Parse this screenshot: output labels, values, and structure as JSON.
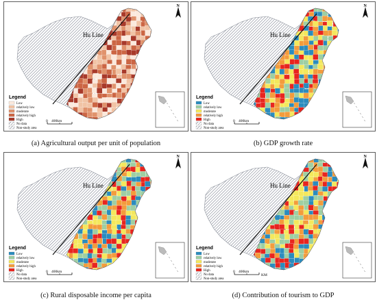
{
  "panels": [
    {
      "id": "a",
      "caption": "(a) Agricultural output per unit of population",
      "line_label": "Hu Line",
      "legend_title": "Legend",
      "classes": [
        "Low",
        "relatively low",
        "moderate",
        "relatively high",
        "High"
      ],
      "palette": [
        "#fbe9dd",
        "#f1c3a5",
        "#e0926c",
        "#cc6644",
        "#a8392a"
      ],
      "extra": [
        "No data",
        "Non-study area"
      ],
      "scale": "400km",
      "scale_zero": "0",
      "north": "N"
    },
    {
      "id": "b",
      "caption": "(b) GDP growth rate",
      "line_label": "Hu Line",
      "legend_title": "Legend",
      "classes": [
        "Low",
        "relatively low",
        "moderate",
        "relatively high",
        "High"
      ],
      "palette": [
        "#2b8cbe",
        "#9ecfa3",
        "#f4e85c",
        "#f39c3c",
        "#e8251f"
      ],
      "extra": [
        "No data",
        "Non-study area"
      ],
      "scale": "400km",
      "scale_zero": "0",
      "north": "N"
    },
    {
      "id": "c",
      "caption": "(c) Rural disposable income per capita",
      "line_label": "Hu Line",
      "legend_title": "Legend",
      "classes": [
        "Low",
        "relatively low",
        "moderate",
        "relatively high",
        "High"
      ],
      "palette": [
        "#2b8cbe",
        "#9ecfa3",
        "#f4e85c",
        "#f39c3c",
        "#e8251f"
      ],
      "extra": [
        "No data",
        "Non-study area"
      ],
      "scale": "400km",
      "scale_zero": "0",
      "north": "N"
    },
    {
      "id": "d",
      "caption": "(d) Contribution of tourism to GDP",
      "line_label": "Hu Line",
      "legend_title": "Legend",
      "classes": [
        "Low",
        "relatively low",
        "moderate",
        "relatively high",
        "High"
      ],
      "palette": [
        "#2b8cbe",
        "#9ecfa3",
        "#f4e85c",
        "#f39c3c",
        "#e8251f"
      ],
      "extra": [
        "No data",
        "Non-study area"
      ],
      "scale": "400km",
      "scale_zero": "0",
      "scale_unit": "KM",
      "north": "N"
    }
  ]
}
